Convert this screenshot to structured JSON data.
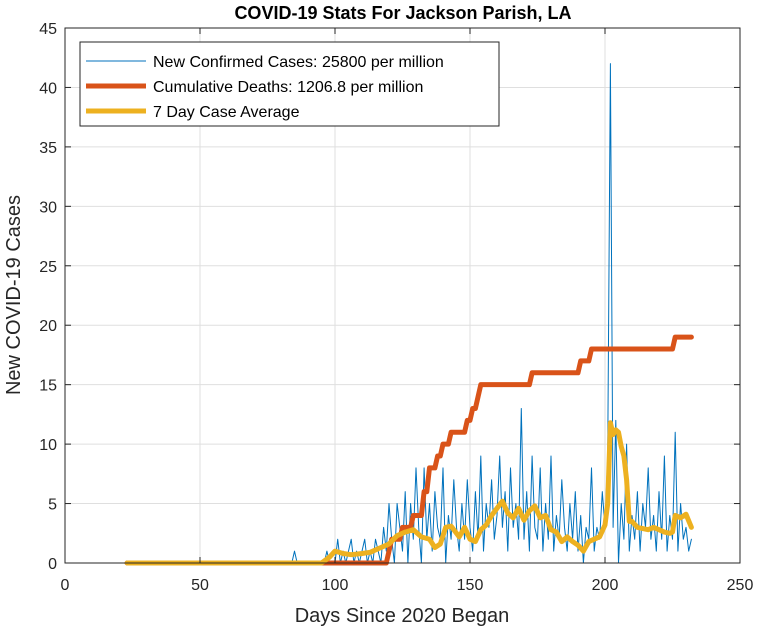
{
  "chart_data": {
    "type": "line",
    "title": "COVID-19 Stats For Jackson Parish, LA",
    "xlabel": "Days Since 2020 Began",
    "ylabel": "New COVID-19 Cases",
    "xlim": [
      0,
      250
    ],
    "ylim": [
      0,
      45
    ],
    "xticks": [
      0,
      50,
      100,
      150,
      200,
      250
    ],
    "yticks": [
      0,
      5,
      10,
      15,
      20,
      25,
      30,
      35,
      40,
      45
    ],
    "grid": true,
    "legend_position": "top-left",
    "series": [
      {
        "name": "New Confirmed Cases: 25800 per million",
        "color": "#0072BD",
        "width": 1,
        "points": [
          [
            23,
            0
          ],
          [
            84,
            0
          ],
          [
            85,
            1
          ],
          [
            86,
            0
          ],
          [
            96,
            0
          ],
          [
            97,
            1
          ],
          [
            98,
            0
          ],
          [
            100,
            0
          ],
          [
            101,
            2
          ],
          [
            102,
            0
          ],
          [
            103,
            1
          ],
          [
            104,
            0
          ],
          [
            105,
            1
          ],
          [
            106,
            2
          ],
          [
            107,
            0
          ],
          [
            108,
            1
          ],
          [
            109,
            0
          ],
          [
            110,
            1
          ],
          [
            111,
            2
          ],
          [
            112,
            0
          ],
          [
            113,
            1
          ],
          [
            114,
            0
          ],
          [
            115,
            2
          ],
          [
            116,
            1
          ],
          [
            117,
            0
          ],
          [
            118,
            3
          ],
          [
            119,
            1
          ],
          [
            120,
            5
          ],
          [
            121,
            2
          ],
          [
            122,
            0
          ],
          [
            123,
            5
          ],
          [
            124,
            3
          ],
          [
            125,
            1
          ],
          [
            126,
            6
          ],
          [
            127,
            0
          ],
          [
            128,
            5
          ],
          [
            129,
            2
          ],
          [
            130,
            8
          ],
          [
            131,
            3
          ],
          [
            132,
            0
          ],
          [
            133,
            8
          ],
          [
            134,
            2
          ],
          [
            135,
            5
          ],
          [
            136,
            1
          ],
          [
            137,
            6
          ],
          [
            138,
            3
          ],
          [
            139,
            2
          ],
          [
            140,
            8
          ],
          [
            141,
            0
          ],
          [
            142,
            4
          ],
          [
            143,
            2
          ],
          [
            144,
            7
          ],
          [
            145,
            3
          ],
          [
            146,
            1
          ],
          [
            147,
            5
          ],
          [
            148,
            2
          ],
          [
            149,
            7
          ],
          [
            150,
            3
          ],
          [
            151,
            1
          ],
          [
            152,
            6
          ],
          [
            153,
            2
          ],
          [
            154,
            9
          ],
          [
            155,
            1
          ],
          [
            156,
            5
          ],
          [
            157,
            3
          ],
          [
            158,
            7
          ],
          [
            159,
            2
          ],
          [
            160,
            4
          ],
          [
            161,
            9
          ],
          [
            162,
            3
          ],
          [
            163,
            6
          ],
          [
            164,
            1
          ],
          [
            165,
            8
          ],
          [
            166,
            3
          ],
          [
            167,
            5
          ],
          [
            168,
            2
          ],
          [
            169,
            13
          ],
          [
            170,
            2
          ],
          [
            171,
            6
          ],
          [
            172,
            1
          ],
          [
            173,
            9
          ],
          [
            174,
            3
          ],
          [
            175,
            2
          ],
          [
            176,
            8
          ],
          [
            177,
            1
          ],
          [
            178,
            5
          ],
          [
            179,
            2
          ],
          [
            180,
            9
          ],
          [
            181,
            1
          ],
          [
            182,
            4
          ],
          [
            183,
            2
          ],
          [
            184,
            7
          ],
          [
            185,
            3
          ],
          [
            186,
            1
          ],
          [
            187,
            5
          ],
          [
            188,
            2
          ],
          [
            189,
            6
          ],
          [
            190,
            1
          ],
          [
            191,
            4
          ],
          [
            192,
            0
          ],
          [
            193,
            3
          ],
          [
            194,
            2
          ],
          [
            195,
            8
          ],
          [
            196,
            1
          ],
          [
            197,
            3
          ],
          [
            198,
            2
          ],
          [
            199,
            6
          ],
          [
            200,
            3
          ],
          [
            201,
            9
          ],
          [
            202,
            42
          ],
          [
            203,
            3
          ],
          [
            204,
            12
          ],
          [
            205,
            0
          ],
          [
            206,
            5
          ],
          [
            207,
            2
          ],
          [
            208,
            10
          ],
          [
            209,
            1
          ],
          [
            210,
            4
          ],
          [
            211,
            2
          ],
          [
            212,
            6
          ],
          [
            213,
            1
          ],
          [
            214,
            5
          ],
          [
            215,
            3
          ],
          [
            216,
            8
          ],
          [
            217,
            2
          ],
          [
            218,
            4
          ],
          [
            219,
            1
          ],
          [
            220,
            6
          ],
          [
            221,
            2
          ],
          [
            222,
            9
          ],
          [
            223,
            1
          ],
          [
            224,
            4
          ],
          [
            225,
            2
          ],
          [
            226,
            11
          ],
          [
            227,
            1
          ],
          [
            228,
            5
          ],
          [
            229,
            2
          ],
          [
            230,
            3
          ],
          [
            231,
            1
          ],
          [
            232,
            2
          ]
        ]
      },
      {
        "name": "Cumulative Deaths: 1206.8 per million",
        "color": "#D95319",
        "width": 5,
        "points": [
          [
            23,
            0
          ],
          [
            119,
            0
          ],
          [
            121,
            2
          ],
          [
            124,
            2
          ],
          [
            125,
            3
          ],
          [
            128,
            3
          ],
          [
            129,
            4
          ],
          [
            132,
            4
          ],
          [
            133,
            6
          ],
          [
            134,
            6
          ],
          [
            135,
            8
          ],
          [
            137,
            8
          ],
          [
            138,
            9
          ],
          [
            139,
            9
          ],
          [
            140,
            10
          ],
          [
            142,
            10
          ],
          [
            143,
            11
          ],
          [
            148,
            11
          ],
          [
            149,
            12
          ],
          [
            150,
            12
          ],
          [
            151,
            13
          ],
          [
            152,
            13
          ],
          [
            153,
            14
          ],
          [
            154,
            15
          ],
          [
            172,
            15
          ],
          [
            173,
            16
          ],
          [
            190,
            16
          ],
          [
            191,
            17
          ],
          [
            194,
            17
          ],
          [
            195,
            18
          ],
          [
            225,
            18
          ],
          [
            226,
            19
          ],
          [
            232,
            19
          ]
        ]
      },
      {
        "name": "7 Day Case Average",
        "color": "#EDB120",
        "width": 5,
        "points": [
          [
            23,
            0
          ],
          [
            95,
            0
          ],
          [
            98,
            0.5
          ],
          [
            100,
            1
          ],
          [
            103,
            0.8
          ],
          [
            106,
            0.7
          ],
          [
            110,
            0.8
          ],
          [
            113,
            0.9
          ],
          [
            116,
            1.2
          ],
          [
            120,
            1.6
          ],
          [
            123,
            2.3
          ],
          [
            126,
            2.6
          ],
          [
            129,
            2.8
          ],
          [
            132,
            2.2
          ],
          [
            135,
            2.0
          ],
          [
            137,
            1.3
          ],
          [
            139,
            1.6
          ],
          [
            141,
            3.0
          ],
          [
            143,
            3.1
          ],
          [
            146,
            2.2
          ],
          [
            148,
            3.0
          ],
          [
            150,
            2.0
          ],
          [
            152,
            1.8
          ],
          [
            154,
            2.8
          ],
          [
            156,
            3.2
          ],
          [
            158,
            4.0
          ],
          [
            160,
            4.6
          ],
          [
            162,
            5.2
          ],
          [
            164,
            4.2
          ],
          [
            166,
            3.8
          ],
          [
            168,
            4.6
          ],
          [
            170,
            3.6
          ],
          [
            172,
            4.4
          ],
          [
            174,
            4.8
          ],
          [
            176,
            3.8
          ],
          [
            178,
            4.0
          ],
          [
            180,
            2.8
          ],
          [
            182,
            2.6
          ],
          [
            184,
            1.8
          ],
          [
            186,
            2.2
          ],
          [
            188,
            1.8
          ],
          [
            190,
            1.5
          ],
          [
            192,
            1.0
          ],
          [
            194,
            1.8
          ],
          [
            196,
            2.0
          ],
          [
            198,
            2.2
          ],
          [
            200,
            3.2
          ],
          [
            201,
            5
          ],
          [
            202,
            11.8
          ],
          [
            203,
            10.8
          ],
          [
            204,
            11.2
          ],
          [
            205,
            11
          ],
          [
            206,
            9.8
          ],
          [
            207,
            9
          ],
          [
            208,
            7
          ],
          [
            209,
            3.5
          ],
          [
            210,
            3.5
          ],
          [
            212,
            3.0
          ],
          [
            214,
            2.9
          ],
          [
            216,
            2.8
          ],
          [
            218,
            3.0
          ],
          [
            220,
            2.8
          ],
          [
            222,
            2.6
          ],
          [
            224,
            2.5
          ],
          [
            225,
            2.6
          ],
          [
            226,
            4.0
          ],
          [
            228,
            3.8
          ],
          [
            230,
            4.1
          ],
          [
            232,
            3.0
          ]
        ]
      }
    ]
  }
}
